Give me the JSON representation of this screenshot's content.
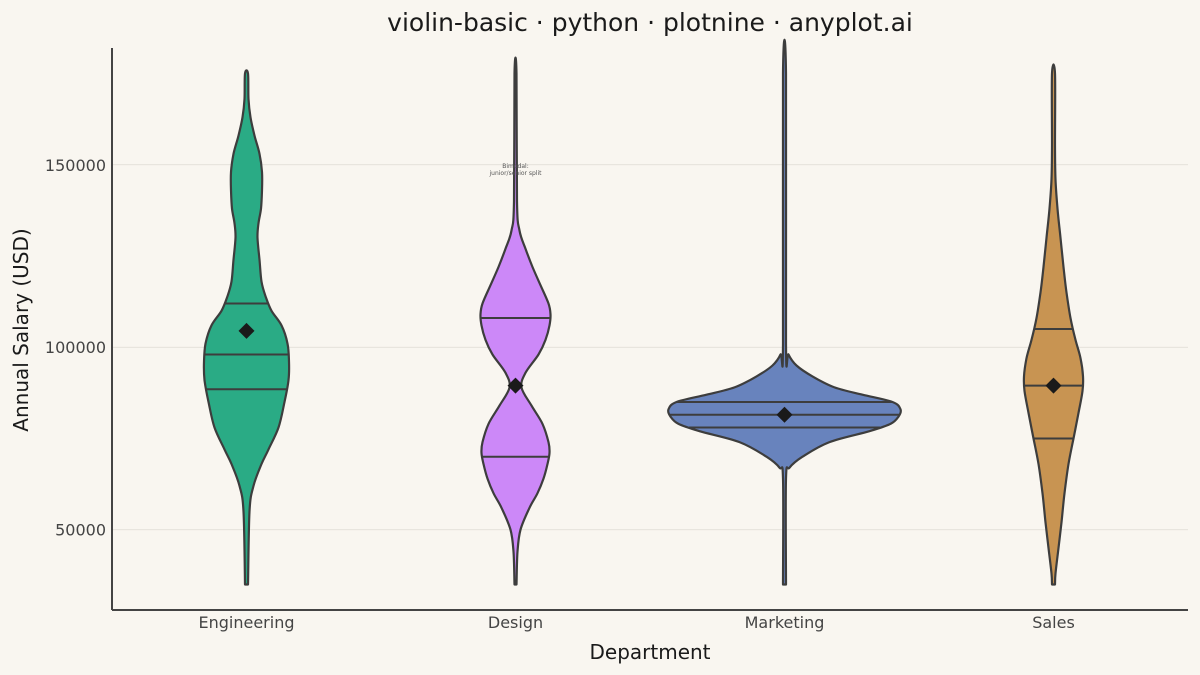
{
  "chart_data": {
    "type": "violin",
    "title": "violin-basic · python · plotnine · anyplot.ai",
    "xlabel": "Department",
    "ylabel": "Annual Salary (USD)",
    "categories": [
      "Engineering",
      "Design",
      "Marketing",
      "Sales"
    ],
    "ylim": [
      28000,
      182000
    ],
    "yticks": [
      50000,
      100000,
      150000
    ],
    "grid": "horizontal",
    "legend": "none",
    "outline_color": "#3d3d3d",
    "mean_marker_color": "#1a1a1a",
    "annotation": {
      "category": "Design",
      "y": 148000,
      "lines": [
        "Bimodal:",
        "junior/senior split"
      ]
    },
    "series": [
      {
        "category": "Engineering",
        "color": "#2aab85",
        "min": 35000,
        "max": 175000,
        "quartiles": [
          88500,
          98000,
          112000
        ],
        "mean": 104500,
        "density": [
          [
            35000,
            1.5
          ],
          [
            55000,
            3
          ],
          [
            62000,
            7
          ],
          [
            68000,
            15
          ],
          [
            72000,
            22
          ],
          [
            78000,
            32
          ],
          [
            85000,
            38
          ],
          [
            91000,
            42
          ],
          [
            96000,
            42.5
          ],
          [
            101000,
            41
          ],
          [
            106000,
            35
          ],
          [
            110000,
            25
          ],
          [
            114000,
            19
          ],
          [
            118000,
            15
          ],
          [
            124000,
            13
          ],
          [
            130000,
            11
          ],
          [
            134000,
            12
          ],
          [
            138000,
            14.5
          ],
          [
            143000,
            15.5
          ],
          [
            148000,
            15.5
          ],
          [
            153000,
            13
          ],
          [
            158000,
            8
          ],
          [
            163000,
            4
          ],
          [
            168000,
            2
          ],
          [
            175000,
            1.5
          ]
        ]
      },
      {
        "category": "Design",
        "color": "#cc88f8",
        "min": 35000,
        "max": 175000,
        "quartiles": [
          70000,
          89500,
          108000
        ],
        "mean": 89500,
        "density": [
          [
            35000,
            1
          ],
          [
            44000,
            2
          ],
          [
            50000,
            5
          ],
          [
            56000,
            14
          ],
          [
            60000,
            22
          ],
          [
            64000,
            28
          ],
          [
            68000,
            32
          ],
          [
            71000,
            34
          ],
          [
            74000,
            33
          ],
          [
            79000,
            27
          ],
          [
            84000,
            16
          ],
          [
            89000,
            6
          ],
          [
            93000,
            10
          ],
          [
            98000,
            23
          ],
          [
            102000,
            30
          ],
          [
            106000,
            34
          ],
          [
            109000,
            35
          ],
          [
            112000,
            33
          ],
          [
            117000,
            25
          ],
          [
            122000,
            17
          ],
          [
            127000,
            10
          ],
          [
            132000,
            4
          ],
          [
            140000,
            1.5
          ],
          [
            175000,
            1
          ]
        ]
      },
      {
        "category": "Marketing",
        "color": "#6883bd",
        "min": 35000,
        "max": 175000,
        "quartiles": [
          78000,
          81500,
          85000
        ],
        "mean": 81500,
        "density": [
          [
            35000,
            1.5
          ],
          [
            64000,
            1.5
          ],
          [
            67000,
            5
          ],
          [
            70000,
            18
          ],
          [
            74000,
            45
          ],
          [
            77000,
            85
          ],
          [
            79000,
            106
          ],
          [
            81000,
            114
          ],
          [
            83000,
            116
          ],
          [
            85000,
            108
          ],
          [
            87000,
            78
          ],
          [
            89000,
            50
          ],
          [
            92000,
            28
          ],
          [
            95000,
            12
          ],
          [
            98000,
            4
          ],
          [
            101000,
            1.5
          ],
          [
            175000,
            1.5
          ]
        ]
      },
      {
        "category": "Sales",
        "color": "#c89452",
        "min": 35000,
        "max": 175000,
        "quartiles": [
          75000,
          89500,
          105000
        ],
        "mean": 89500,
        "density": [
          [
            35000,
            1.5
          ],
          [
            38000,
            2
          ],
          [
            45000,
            5
          ],
          [
            52000,
            8
          ],
          [
            60000,
            11
          ],
          [
            68000,
            15
          ],
          [
            75000,
            20
          ],
          [
            82000,
            25
          ],
          [
            88000,
            29
          ],
          [
            92000,
            29.5
          ],
          [
            97000,
            27
          ],
          [
            102000,
            22
          ],
          [
            108000,
            17
          ],
          [
            115000,
            13
          ],
          [
            122000,
            10
          ],
          [
            130000,
            7
          ],
          [
            138000,
            4
          ],
          [
            146000,
            2
          ],
          [
            155000,
            1.5
          ],
          [
            175000,
            1.5
          ]
        ]
      }
    ]
  }
}
